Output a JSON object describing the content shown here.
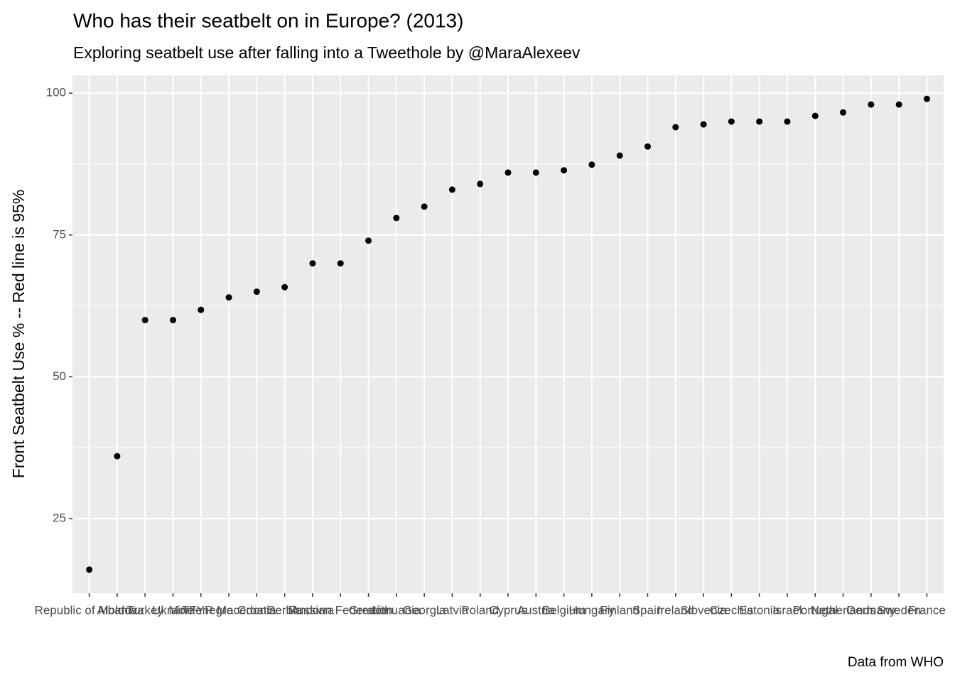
{
  "chart_data": {
    "type": "scatter",
    "title": "Who has their seatbelt on in Europe? (2013)",
    "subtitle": "Exploring seatbelt use after falling into a Tweethole by @MaraAlexeev",
    "y_label": "Front Seatbelt Use % -- Red line is 95%",
    "caption": "Data from WHO",
    "categories": [
      "Republic of Moldova",
      "Albania",
      "Turkey",
      "Ukraine",
      "Montenegro",
      "TFYR Macedonia",
      "Croatia",
      "Serbia",
      "Andorra",
      "Russian Federation",
      "Greece",
      "Lithuania",
      "Georgia",
      "Latvia",
      "Poland",
      "Cyprus",
      "Austria",
      "Belgium",
      "Hungary",
      "Finland",
      "Spain",
      "Ireland",
      "Slovenia",
      "Czechia",
      "Estonia",
      "Israel",
      "Portugal",
      "Netherlands",
      "Germany",
      "Sweden",
      "France"
    ],
    "values": [
      16,
      36,
      60,
      60,
      61.8,
      64,
      65,
      65.8,
      70,
      70,
      74,
      78,
      80,
      83,
      84,
      86,
      86,
      86.4,
      87.4,
      89,
      90.6,
      94,
      94.5,
      95,
      95,
      95,
      96,
      96.6,
      98,
      98,
      99
    ],
    "color": "#000000",
    "ylim": [
      11.85,
      103.15
    ],
    "yticks": [
      25,
      50,
      75,
      100
    ],
    "grid": true
  }
}
